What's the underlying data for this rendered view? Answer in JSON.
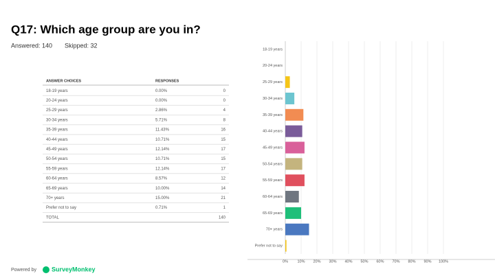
{
  "header": {
    "title": "Q17: Which age group are you in?",
    "answered": "Answered: 140",
    "skipped": "Skipped: 32"
  },
  "table": {
    "columns": [
      "ANSWER CHOICES",
      "RESPONSES"
    ],
    "rows": [
      [
        "18-19 years",
        "0.00%",
        "0"
      ],
      [
        "20-24 years",
        "0.00%",
        "0"
      ],
      [
        "25-29 years",
        "2.86%",
        "4"
      ],
      [
        "30-34 years",
        "5.71%",
        "8"
      ],
      [
        "35-39 years",
        "11.43%",
        "16"
      ],
      [
        "40-44 years",
        "10.71%",
        "15"
      ],
      [
        "45-49 years",
        "12.14%",
        "17"
      ],
      [
        "50-54 years",
        "10.71%",
        "15"
      ],
      [
        "55-59 years",
        "12.14%",
        "17"
      ],
      [
        "60-64 years",
        "8.57%",
        "12"
      ],
      [
        "65-69 years",
        "10.00%",
        "14"
      ],
      [
        "70+ years",
        "15.00%",
        "21"
      ],
      [
        "Prefer not to say",
        "0.71%",
        "1"
      ]
    ],
    "total": [
      "TOTAL",
      "140"
    ]
  },
  "chart_data": {
    "type": "bar",
    "orientation": "horizontal",
    "categories": [
      "18-19 years",
      "20-24 years",
      "25-29 years",
      "30-34 years",
      "35-39 years",
      "40-44 years",
      "45-49 years",
      "50-54 years",
      "55-59 years",
      "60-64 years",
      "65-69 years",
      "70+ years",
      "Prefer not to say"
    ],
    "values": [
      0,
      0,
      2.86,
      5.71,
      11.43,
      10.71,
      12.14,
      10.71,
      12.14,
      8.57,
      10,
      15,
      0.71
    ],
    "colors": [
      "#f5c518",
      "#6cc5d0",
      "#f5c518",
      "#6cc5d0",
      "#f28c52",
      "#7a5c9a",
      "#d9609a",
      "#c4b47e",
      "#e0505e",
      "#6f7680",
      "#1fbf7a",
      "#4a78c0",
      "#f5c518"
    ],
    "xlim": [
      0,
      100
    ],
    "xticks": [
      {
        "value": 0,
        "label": "0%"
      },
      {
        "value": 10,
        "label": "10%"
      },
      {
        "value": 20,
        "label": "20%"
      },
      {
        "value": 30,
        "label": "30%"
      },
      {
        "value": 40,
        "label": "40%"
      },
      {
        "value": 50,
        "label": "50%"
      },
      {
        "value": 60,
        "label": "60%"
      },
      {
        "value": 70,
        "label": "70%"
      },
      {
        "value": 80,
        "label": "80%"
      },
      {
        "value": 90,
        "label": "90%"
      },
      {
        "value": 100,
        "label": "100%"
      }
    ]
  },
  "footer": {
    "powered_by": "Powered by",
    "brand": "SurveyMonkey"
  }
}
